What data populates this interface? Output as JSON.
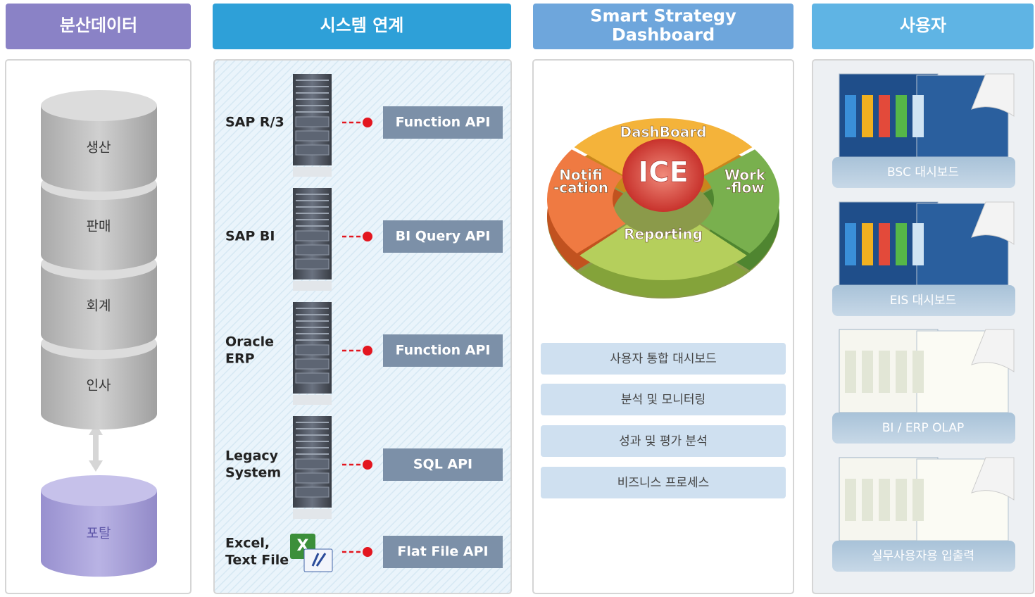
{
  "headers": [
    "분산데이터",
    "시스템 연계",
    [
      "Smart Strategy",
      "Dashboard"
    ],
    "사용자"
  ],
  "data_sources": [
    "생산",
    "판매",
    "회계",
    "인사"
  ],
  "portal": "포탈",
  "integrations": [
    {
      "system": [
        "SAP R/3"
      ],
      "api": "Function API"
    },
    {
      "system": [
        "SAP BI"
      ],
      "api": "BI Query API"
    },
    {
      "system": [
        "Oracle",
        "ERP"
      ],
      "api": "Function API"
    },
    {
      "system": [
        "Legacy",
        "System"
      ],
      "api": "SQL API"
    },
    {
      "system": [
        "Excel,",
        "Text File"
      ],
      "api": "Flat File API"
    }
  ],
  "dashboard": {
    "center": "ICE",
    "top": "DashBoard",
    "left": [
      "Notifi",
      "-cation"
    ],
    "right": [
      "Work",
      "-flow"
    ],
    "bottom": "Reporting"
  },
  "features": [
    "사용자 통합 대시보드",
    "분석 및 모니터링",
    "성과 및 평가 분석",
    "비즈니스 프로세스"
  ],
  "users": [
    "BSC 대시보드",
    "EIS 대시보드",
    "BI / ERP OLAP",
    "실무사용자용 입출력"
  ]
}
